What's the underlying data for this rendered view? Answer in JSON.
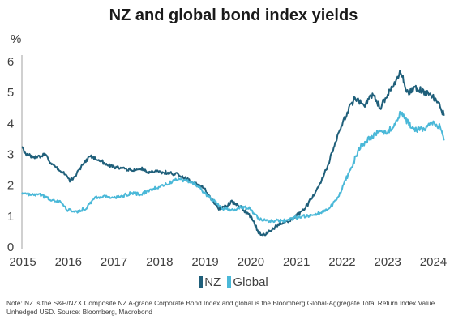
{
  "chart_data": {
    "type": "line",
    "title": "NZ and global bond index yields",
    "ylabel": "%",
    "xlabel": "",
    "xlim": [
      2015.0,
      2024.4
    ],
    "ylim": [
      0,
      6
    ],
    "x_ticks": [
      "2015",
      "2016",
      "2017",
      "2018",
      "2019",
      "2020",
      "2021",
      "2022",
      "2023",
      "2024"
    ],
    "y_ticks": [
      "0",
      "1",
      "2",
      "3",
      "4",
      "5",
      "6"
    ],
    "grid": false,
    "legend": "bottom-center",
    "series": [
      {
        "name": "NZ",
        "color": "#1f5f7a",
        "x": [
          2015.0,
          2015.1,
          2015.3,
          2015.5,
          2015.7,
          2015.9,
          2016.05,
          2016.2,
          2016.35,
          2016.5,
          2016.7,
          2016.85,
          2017.0,
          2017.2,
          2017.4,
          2017.6,
          2017.8,
          2018.0,
          2018.2,
          2018.4,
          2018.6,
          2018.8,
          2019.0,
          2019.15,
          2019.3,
          2019.45,
          2019.6,
          2019.75,
          2019.9,
          2020.0,
          2020.1,
          2020.2,
          2020.3,
          2020.45,
          2020.6,
          2020.75,
          2020.9,
          2021.1,
          2021.25,
          2021.4,
          2021.55,
          2021.7,
          2021.85,
          2022.0,
          2022.15,
          2022.3,
          2022.5,
          2022.7,
          2022.85,
          2023.0,
          2023.15,
          2023.3,
          2023.45,
          2023.6,
          2023.8,
          2024.0,
          2024.15,
          2024.25
        ],
        "values": [
          3.2,
          3.0,
          2.9,
          3.0,
          2.6,
          2.4,
          2.15,
          2.35,
          2.7,
          2.95,
          2.8,
          2.7,
          2.6,
          2.55,
          2.5,
          2.55,
          2.4,
          2.45,
          2.4,
          2.35,
          2.2,
          2.05,
          1.9,
          1.55,
          1.25,
          1.3,
          1.45,
          1.35,
          1.15,
          1.0,
          0.75,
          0.45,
          0.4,
          0.55,
          0.7,
          0.8,
          0.9,
          1.1,
          1.35,
          1.7,
          2.1,
          2.6,
          3.3,
          3.9,
          4.4,
          4.8,
          4.6,
          4.95,
          4.5,
          4.9,
          5.25,
          5.7,
          5.0,
          5.15,
          5.05,
          4.85,
          4.6,
          4.25
        ]
      },
      {
        "name": "Global",
        "color": "#4ab8d8",
        "x": [
          2015.0,
          2015.2,
          2015.4,
          2015.6,
          2015.8,
          2016.0,
          2016.2,
          2016.4,
          2016.6,
          2016.8,
          2017.0,
          2017.2,
          2017.4,
          2017.6,
          2017.8,
          2018.0,
          2018.2,
          2018.4,
          2018.6,
          2018.8,
          2019.0,
          2019.2,
          2019.4,
          2019.6,
          2019.8,
          2020.0,
          2020.2,
          2020.4,
          2020.6,
          2020.8,
          2021.0,
          2021.2,
          2021.4,
          2021.6,
          2021.8,
          2022.0,
          2022.2,
          2022.4,
          2022.6,
          2022.8,
          2023.0,
          2023.2,
          2023.3,
          2023.45,
          2023.6,
          2023.8,
          2024.0,
          2024.15,
          2024.25
        ],
        "values": [
          1.75,
          1.7,
          1.7,
          1.55,
          1.5,
          1.2,
          1.15,
          1.25,
          1.6,
          1.65,
          1.6,
          1.65,
          1.75,
          1.7,
          1.85,
          1.95,
          2.05,
          2.2,
          2.15,
          2.05,
          1.75,
          1.5,
          1.25,
          1.2,
          1.3,
          1.25,
          0.9,
          0.85,
          0.85,
          0.85,
          0.95,
          1.0,
          1.05,
          1.15,
          1.35,
          1.8,
          2.5,
          3.2,
          3.5,
          3.7,
          3.7,
          4.0,
          4.35,
          4.05,
          3.8,
          3.8,
          4.05,
          3.9,
          3.45
        ]
      }
    ]
  },
  "note": {
    "line1": "Note: NZ is the S&P/NZX Composite NZ A-grade Corporate Bond Index and global is the Bloomberg Global-Aggregate Total Return Index Value",
    "line2": "Unhedged USD.  Source: Bloomberg, Macrobond"
  }
}
